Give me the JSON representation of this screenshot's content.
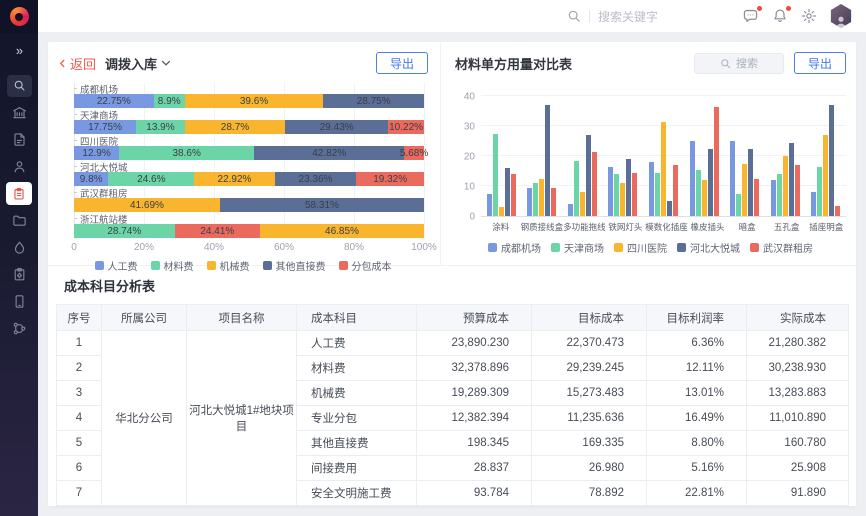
{
  "topbar": {
    "search_placeholder": "搜索关键字",
    "icons": [
      "search-icon",
      "message-icon",
      "bell-icon",
      "gear-icon",
      "avatar"
    ],
    "badge_color": "#F5483B"
  },
  "sidebar": {
    "icons": [
      "expand-icon",
      "search-icon",
      "building-icon",
      "document-edit-icon",
      "user-icon",
      "clipboard-icon-active",
      "folder-icon",
      "water-drop-icon",
      "clipboard-settings-icon",
      "mobile-icon",
      "workflow-icon"
    ],
    "active_item": "clipboard",
    "active_color": "#E2574C"
  },
  "left_panel": {
    "back_label": "返回",
    "title": "调拨入库",
    "export_label": "导出"
  },
  "right_panel": {
    "title": "材料单方用量对比表",
    "search_placeholder": "搜索",
    "export_label": "导出"
  },
  "chart_data": [
    {
      "type": "bar",
      "orientation": "horizontal-stacked",
      "title": "调拨入库",
      "unit": "percent",
      "xlim": [
        0,
        100
      ],
      "x_ticks": [
        "0",
        "20%",
        "40%",
        "60%",
        "80%",
        "100%"
      ],
      "grid": true,
      "legend_position": "bottom",
      "legend": [
        "人工费",
        "材料费",
        "机械费",
        "其他直接费",
        "分包成本"
      ],
      "series_colors": [
        "#7899E2",
        "#6CD5A8",
        "#F8B52D",
        "#5A6E96",
        "#EA6A5D"
      ],
      "rows": [
        {
          "category": "成都机场",
          "segments": [
            {
              "series": "人工费",
              "value": 22.75,
              "label": "22.75%"
            },
            {
              "series": "材料费",
              "value": 8.9,
              "label": "8.9%"
            },
            {
              "series": "机械费",
              "value": 39.6,
              "label": "39.6%"
            },
            {
              "series": "其他直接费",
              "value": 28.75,
              "label": "28.75%"
            }
          ]
        },
        {
          "category": "天津商场",
          "segments": [
            {
              "series": "人工费",
              "value": 17.75,
              "label": "17.75%"
            },
            {
              "series": "材料费",
              "value": 13.9,
              "label": "13.9%"
            },
            {
              "series": "机械费",
              "value": 28.7,
              "label": "28.7%"
            },
            {
              "series": "其他直接费",
              "value": 29.43,
              "label": "29.43%"
            },
            {
              "series": "分包成本",
              "value": 10.22,
              "label": "10.22%"
            }
          ]
        },
        {
          "category": "四川医院",
          "segments": [
            {
              "series": "人工费",
              "value": 12.9,
              "label": "12.9%"
            },
            {
              "series": "材料费",
              "value": 38.6,
              "label": "38.6%"
            },
            {
              "series": "其他直接费",
              "value": 42.82,
              "label": "42.82%"
            },
            {
              "series": "分包成本",
              "value": 5.68,
              "label": "5.68%"
            }
          ]
        },
        {
          "category": "河北大悦城",
          "segments": [
            {
              "series": "人工费",
              "value": 9.8,
              "label": "9.8%"
            },
            {
              "series": "材料费",
              "value": 24.6,
              "label": "24.6%"
            },
            {
              "series": "机械费",
              "value": 22.92,
              "label": "22.92%"
            },
            {
              "series": "其他直接费",
              "value": 23.36,
              "label": "23.36%"
            },
            {
              "series": "分包成本",
              "value": 19.32,
              "label": "19.32%"
            }
          ]
        },
        {
          "category": "武汉群租房",
          "segments": [
            {
              "series": "机械费",
              "value": 41.69,
              "label": "41.69%"
            },
            {
              "series": "其他直接费",
              "value": 58.31,
              "label": "58.31%"
            }
          ]
        },
        {
          "category": "浙江航站楼",
          "segments": [
            {
              "series": "材料费",
              "value": 28.74,
              "label": "28.74%"
            },
            {
              "series": "分包成本",
              "value": 24.41,
              "label": "24.41%"
            },
            {
              "series": "机械费",
              "value": 46.85,
              "label": "46.85%"
            }
          ]
        }
      ]
    },
    {
      "type": "bar",
      "orientation": "vertical-grouped",
      "title": "材料单方用量对比表",
      "ylim": [
        0,
        40
      ],
      "y_ticks": [
        0,
        10,
        20,
        30,
        40
      ],
      "grid": true,
      "legend_position": "bottom",
      "categories": [
        "涂料",
        "钢质接线盒",
        "多功能拖线",
        "铁网灯头",
        "模数化插座",
        "橡皮插头",
        "暗盒",
        "五孔盒",
        "插座明盒"
      ],
      "series": [
        {
          "name": "成都机场",
          "color": "#7899E2",
          "values": [
            7.5,
            9.5,
            4,
            16.5,
            18,
            25,
            25,
            12,
            8
          ]
        },
        {
          "name": "天津商场",
          "color": "#6CD5A8",
          "values": [
            27.5,
            11,
            18.5,
            14,
            14.5,
            15.5,
            7.5,
            14,
            16.5
          ]
        },
        {
          "name": "四川医院",
          "color": "#F8B52D",
          "values": [
            3,
            12.5,
            8,
            11,
            31.5,
            12,
            17.5,
            20,
            27
          ]
        },
        {
          "name": "河北大悦城",
          "color": "#5A6E96",
          "values": [
            16,
            37,
            27,
            19,
            5,
            22.5,
            22.5,
            24.5,
            37
          ]
        },
        {
          "name": "武汉群租房",
          "color": "#EA6A5D",
          "values": [
            14,
            9.5,
            21.5,
            14.5,
            17,
            36.5,
            12.5,
            17,
            3.5
          ]
        }
      ]
    }
  ],
  "table": {
    "title": "成本科目分析表",
    "headers": [
      "序号",
      "所属公司",
      "项目名称",
      "成本科目",
      "预算成本",
      "目标成本",
      "目标利润率",
      "实际成本"
    ],
    "company": "华北分公司",
    "project": "河北大悦城1#地块项目",
    "rows": [
      {
        "index": "1",
        "subject": "人工费",
        "budget": "23,890.230",
        "target": "22,370.473",
        "margin": "6.36%",
        "actual": "21,280.382"
      },
      {
        "index": "2",
        "subject": "材料费",
        "budget": "32,378.896",
        "target": "29,239.245",
        "margin": "12.11%",
        "actual": "30,238.930"
      },
      {
        "index": "3",
        "subject": "机械费",
        "budget": "19,289.309",
        "target": "15,273.483",
        "margin": "13.01%",
        "actual": "13,283.883"
      },
      {
        "index": "4",
        "subject": "专业分包",
        "budget": "12,382.394",
        "target": "11,235.636",
        "margin": "16.49%",
        "actual": "11,010.890"
      },
      {
        "index": "5",
        "subject": "其他直接费",
        "budget": "198.345",
        "target": "169.335",
        "margin": "8.80%",
        "actual": "160.780"
      },
      {
        "index": "6",
        "subject": "间接费用",
        "budget": "28.837",
        "target": "26.980",
        "margin": "5.16%",
        "actual": "25.908"
      },
      {
        "index": "7",
        "subject": "安全文明施工费",
        "budget": "93.784",
        "target": "78.892",
        "margin": "22.81%",
        "actual": "91.890"
      }
    ]
  }
}
